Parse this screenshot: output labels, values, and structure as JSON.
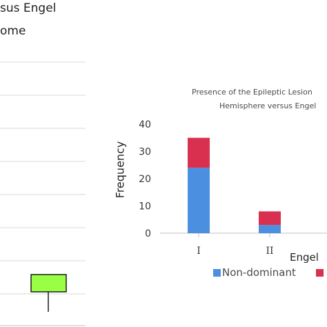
{
  "left_chart": {
    "title_line_1": "sus Engel",
    "title_line_2": "ome",
    "box_color": "#99ff44"
  },
  "chart_data": {
    "type": "bar",
    "stacked": true,
    "title": "Presence of the Epileptic Lesion Hemisphere versus Engel",
    "title_line_1": "Presence of the Epileptic Lesion",
    "title_line_2": "Hemisphere versus Engel",
    "xlabel": "Engel",
    "ylabel": "Frequency",
    "categories": [
      "I",
      "II"
    ],
    "ylim": [
      0,
      40
    ],
    "yticks": [
      0,
      10,
      20,
      30,
      40
    ],
    "grid": false,
    "legend_position": "bottom",
    "series": [
      {
        "name": "Non-dominant",
        "values": [
          24,
          3
        ],
        "color": "#4a8fe0"
      },
      {
        "name": "",
        "values": [
          11,
          5
        ],
        "color": "#d9304f"
      }
    ]
  }
}
